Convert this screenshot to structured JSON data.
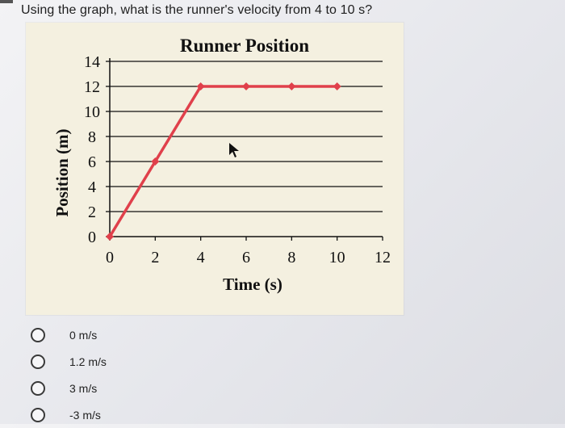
{
  "question": "Using the graph, what is the runner's velocity from 4 to 10 s?",
  "answers": [
    {
      "label": "0 m/s"
    },
    {
      "label": "1.2 m/s"
    },
    {
      "label": "3 m/s"
    },
    {
      "label": "-3 m/s"
    }
  ],
  "chart_data": {
    "type": "line",
    "title": "Runner Position",
    "xlabel": "Time (s)",
    "ylabel": "Position (m)",
    "xlim": [
      0,
      12
    ],
    "ylim": [
      0,
      14
    ],
    "x_ticks": [
      "0",
      "2",
      "4",
      "6",
      "8",
      "10",
      "12"
    ],
    "y_ticks": [
      "0",
      "2",
      "4",
      "6",
      "8",
      "10",
      "12",
      "14"
    ],
    "series": [
      {
        "x": [
          0,
          2,
          4,
          6,
          8,
          10
        ],
        "y": [
          0,
          6,
          12,
          12,
          12,
          12
        ],
        "color": "#e0404b"
      }
    ],
    "grid": "horizontal",
    "line_color": "#e0404b"
  }
}
